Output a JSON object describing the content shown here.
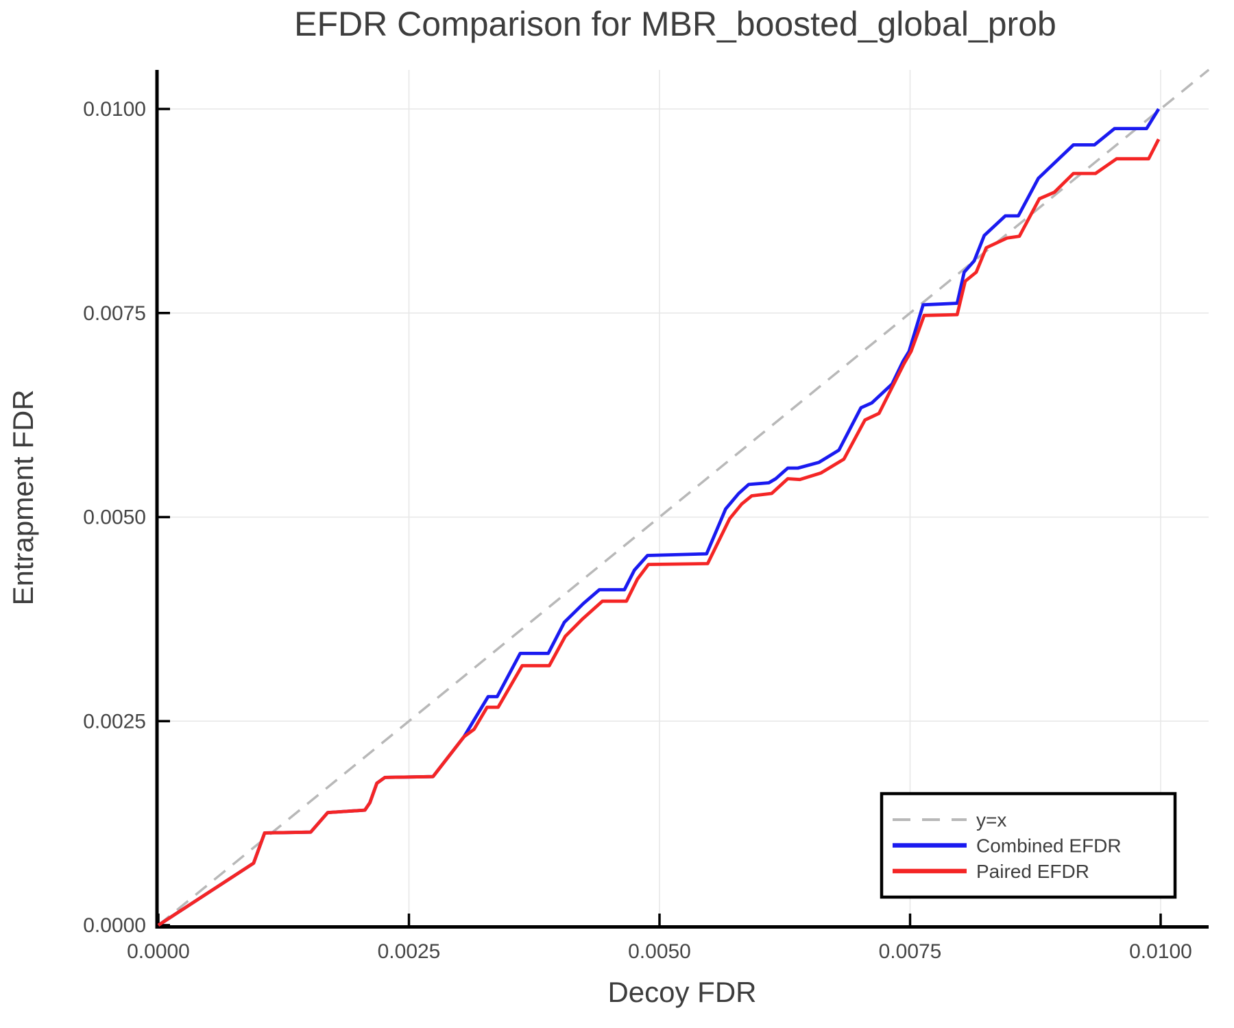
{
  "chart_data": {
    "type": "line",
    "title": "EFDR Comparison for MBR_boosted_global_prob",
    "xlabel": "Decoy FDR",
    "ylabel": "Entrapment FDR",
    "xlim": [
      0.0,
      0.01048
    ],
    "ylim": [
      0.0,
      0.01048
    ],
    "grid": true,
    "x_ticks": {
      "values": [
        0.0,
        0.0025,
        0.005,
        0.0075,
        0.01
      ],
      "labels": [
        "0.0000",
        "0.0025",
        "0.0050",
        "0.0075",
        "0.0100"
      ]
    },
    "y_ticks": {
      "values": [
        0.0,
        0.0025,
        0.005,
        0.0075,
        0.01
      ],
      "labels": [
        "0.0000",
        "0.0025",
        "0.0050",
        "0.0075",
        "0.0100"
      ]
    },
    "legend_position": "lower right",
    "series": [
      {
        "name": "y=x",
        "color": "#b8b8b8",
        "dashed": true,
        "points": [
          [
            0.0,
            0.0
          ],
          [
            0.01048,
            0.01048
          ]
        ]
      },
      {
        "name": "Combined EFDR",
        "color": "#1a1af0",
        "dashed": false,
        "points": [
          [
            0.0,
            0.0
          ],
          [
            0.00095,
            0.00076
          ],
          [
            0.00106,
            0.00113
          ],
          [
            0.00152,
            0.00114
          ],
          [
            0.00169,
            0.00138
          ],
          [
            0.00206,
            0.00141
          ],
          [
            0.00211,
            0.0015
          ],
          [
            0.00218,
            0.00174
          ],
          [
            0.00226,
            0.00181
          ],
          [
            0.00274,
            0.00182
          ],
          [
            0.00305,
            0.00231
          ],
          [
            0.00329,
            0.0028
          ],
          [
            0.00338,
            0.0028
          ],
          [
            0.00361,
            0.00333
          ],
          [
            0.00389,
            0.00333
          ],
          [
            0.00405,
            0.00371
          ],
          [
            0.00424,
            0.00394
          ],
          [
            0.0044,
            0.00411
          ],
          [
            0.00465,
            0.00411
          ],
          [
            0.00475,
            0.00435
          ],
          [
            0.00488,
            0.00453
          ],
          [
            0.00547,
            0.00455
          ],
          [
            0.00566,
            0.0051
          ],
          [
            0.00579,
            0.00529
          ],
          [
            0.00589,
            0.0054
          ],
          [
            0.00609,
            0.00542
          ],
          [
            0.00616,
            0.00547
          ],
          [
            0.00628,
            0.0056
          ],
          [
            0.00638,
            0.0056
          ],
          [
            0.00659,
            0.00567
          ],
          [
            0.00679,
            0.00582
          ],
          [
            0.00701,
            0.00634
          ],
          [
            0.00712,
            0.0064
          ],
          [
            0.00732,
            0.00663
          ],
          [
            0.00743,
            0.00691
          ],
          [
            0.00749,
            0.00703
          ],
          [
            0.00763,
            0.0076
          ],
          [
            0.00797,
            0.00762
          ],
          [
            0.00804,
            0.008
          ],
          [
            0.00814,
            0.00814
          ],
          [
            0.00824,
            0.00845
          ],
          [
            0.00845,
            0.00869
          ],
          [
            0.00858,
            0.00869
          ],
          [
            0.00878,
            0.00915
          ],
          [
            0.00913,
            0.00956
          ],
          [
            0.00934,
            0.00956
          ],
          [
            0.00954,
            0.00976
          ],
          [
            0.00986,
            0.00976
          ],
          [
            0.00998,
            0.01
          ]
        ]
      },
      {
        "name": "Paired EFDR",
        "color": "#f42525",
        "dashed": false,
        "points": [
          [
            0.0,
            0.0
          ],
          [
            0.00095,
            0.00076
          ],
          [
            0.00106,
            0.00113
          ],
          [
            0.00152,
            0.00114
          ],
          [
            0.00169,
            0.00138
          ],
          [
            0.00206,
            0.00141
          ],
          [
            0.00211,
            0.0015
          ],
          [
            0.00218,
            0.00174
          ],
          [
            0.00226,
            0.00181
          ],
          [
            0.00274,
            0.00182
          ],
          [
            0.00305,
            0.00231
          ],
          [
            0.00315,
            0.0024
          ],
          [
            0.00328,
            0.00267
          ],
          [
            0.00339,
            0.00267
          ],
          [
            0.00363,
            0.00318
          ],
          [
            0.0039,
            0.00318
          ],
          [
            0.00406,
            0.00354
          ],
          [
            0.00423,
            0.00375
          ],
          [
            0.00443,
            0.00397
          ],
          [
            0.00467,
            0.00397
          ],
          [
            0.00478,
            0.00424
          ],
          [
            0.00489,
            0.00442
          ],
          [
            0.00548,
            0.00443
          ],
          [
            0.0057,
            0.00498
          ],
          [
            0.00582,
            0.00516
          ],
          [
            0.00592,
            0.00526
          ],
          [
            0.00612,
            0.00529
          ],
          [
            0.00628,
            0.00547
          ],
          [
            0.0064,
            0.00546
          ],
          [
            0.00661,
            0.00554
          ],
          [
            0.00684,
            0.00571
          ],
          [
            0.00705,
            0.00619
          ],
          [
            0.00719,
            0.00627
          ],
          [
            0.00744,
            0.00688
          ],
          [
            0.00751,
            0.00703
          ],
          [
            0.00764,
            0.00747
          ],
          [
            0.00797,
            0.00748
          ],
          [
            0.00805,
            0.00789
          ],
          [
            0.00816,
            0.008
          ],
          [
            0.00826,
            0.0083
          ],
          [
            0.00847,
            0.00842
          ],
          [
            0.00859,
            0.00844
          ],
          [
            0.00879,
            0.0089
          ],
          [
            0.00894,
            0.00898
          ],
          [
            0.00913,
            0.00921
          ],
          [
            0.00935,
            0.00921
          ],
          [
            0.00956,
            0.00939
          ],
          [
            0.00988,
            0.00939
          ],
          [
            0.00998,
            0.00963
          ]
        ]
      }
    ],
    "colors": {
      "grid": "#e7e7e7",
      "spine": "#000000",
      "title_text": "#3d3d3d",
      "tick_text": "#454545",
      "legend_border": "#000000",
      "legend_background": "#ffffff"
    }
  }
}
